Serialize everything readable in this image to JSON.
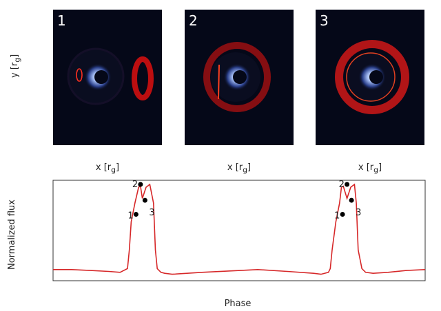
{
  "panels": [
    {
      "label": "1",
      "xlabel": "x [rg]"
    },
    {
      "label": "2",
      "xlabel": "x [rg]"
    },
    {
      "label": "3",
      "xlabel": "x [rg]"
    }
  ],
  "top_ylabel": "y [rg]",
  "colors": {
    "curve": "#d62728",
    "marker": "#000000",
    "panel_bg": "#050818",
    "ring": "#e01818"
  },
  "chart_data": {
    "type": "line",
    "xlabel": "Phase",
    "ylabel": "Normalized flux",
    "ticks": "none",
    "grid": false,
    "series": [
      {
        "x": [
          0.0,
          0.05,
          0.1,
          0.15,
          0.18,
          0.2,
          0.205,
          0.21,
          0.22,
          0.23,
          0.235,
          0.24,
          0.25,
          0.26,
          0.27,
          0.275,
          0.28,
          0.29,
          0.3,
          0.32,
          0.4,
          0.55,
          0.63,
          0.7,
          0.72,
          0.74,
          0.745,
          0.75,
          0.76,
          0.77,
          0.775,
          0.78,
          0.79,
          0.8,
          0.81,
          0.815,
          0.82,
          0.83,
          0.84,
          0.86,
          0.9,
          0.95,
          1.0
        ],
        "y": [
          0.09,
          0.09,
          0.08,
          0.07,
          0.06,
          0.1,
          0.3,
          0.6,
          0.8,
          0.97,
          0.98,
          0.85,
          0.97,
          1.0,
          0.8,
          0.3,
          0.1,
          0.06,
          0.05,
          0.04,
          0.06,
          0.09,
          0.07,
          0.05,
          0.04,
          0.06,
          0.1,
          0.3,
          0.6,
          0.8,
          0.97,
          0.98,
          0.85,
          0.97,
          1.0,
          0.8,
          0.3,
          0.1,
          0.06,
          0.05,
          0.06,
          0.08,
          0.09
        ]
      }
    ],
    "markers": [
      {
        "label": "1",
        "x": 0.223,
        "y": 0.68
      },
      {
        "label": "2",
        "x": 0.235,
        "y": 1.0
      },
      {
        "label": "3",
        "x": 0.247,
        "y": 0.83
      },
      {
        "label": "1",
        "x": 0.778,
        "y": 0.68
      },
      {
        "label": "2",
        "x": 0.79,
        "y": 1.0
      },
      {
        "label": "3",
        "x": 0.802,
        "y": 0.83
      }
    ]
  }
}
